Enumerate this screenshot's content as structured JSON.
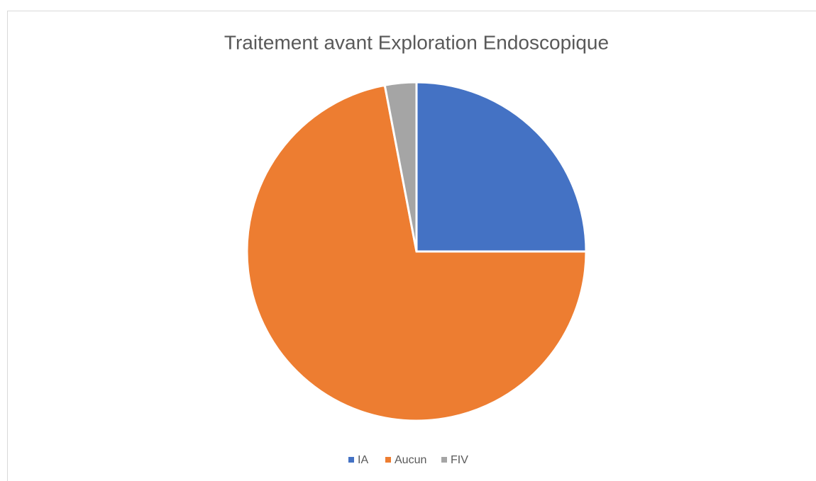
{
  "chart_data": {
    "type": "pie",
    "title": "Traitement avant Exploration Endoscopique",
    "categories": [
      "IA",
      "Aucun",
      "FIV"
    ],
    "values": [
      25,
      72,
      3
    ],
    "colors": [
      "#4472c4",
      "#ed7d31",
      "#a5a5a5"
    ],
    "legend": "bottom"
  }
}
